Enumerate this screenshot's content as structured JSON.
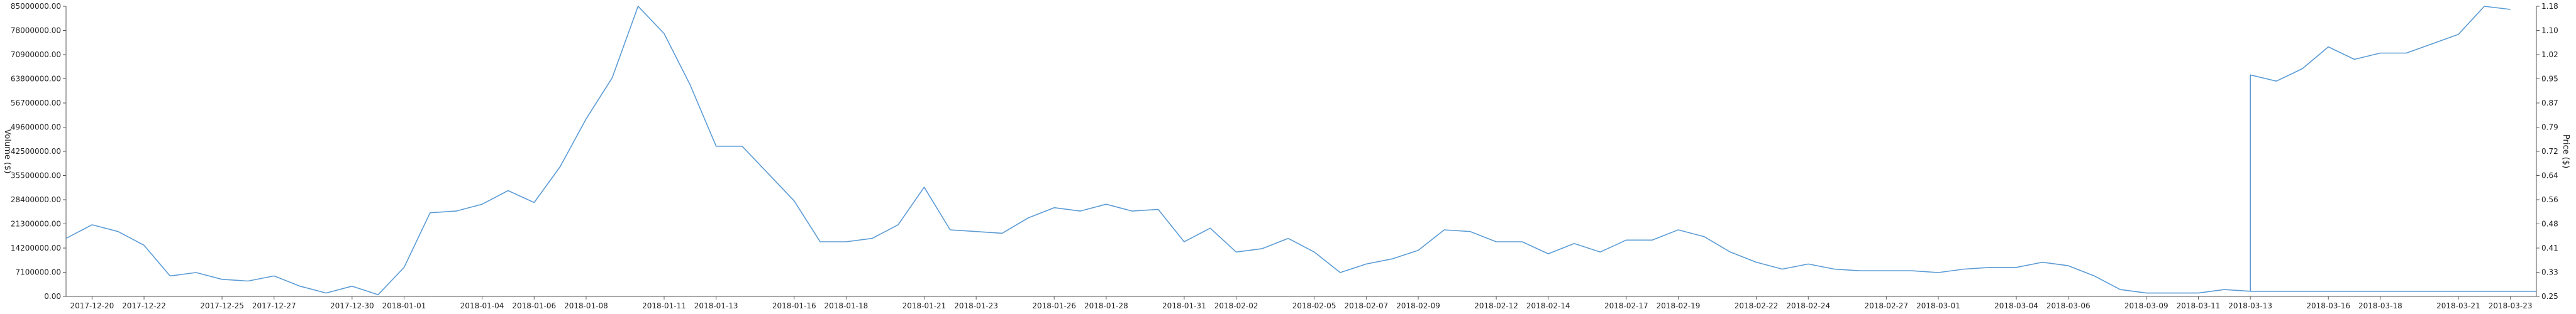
{
  "chart_data": {
    "type": "line",
    "title": "",
    "ylabel_left": "Volume ($)",
    "ylabel_right": "Price ($)",
    "ylim_left": [
      0,
      85000000
    ],
    "ylim_right": [
      0.25,
      1.18
    ],
    "grid": false,
    "colors": {
      "volume": "#5b9bd5",
      "price": "#5b9bd5"
    },
    "yticks_left": [
      "0.00",
      "7100000.00",
      "14200000.00",
      "21300000.00",
      "28400000.00",
      "35500000.00",
      "42500000.00",
      "49600000.00",
      "56700000.00",
      "63800000.00",
      "70900000.00",
      "78000000.00",
      "85000000.00"
    ],
    "yticks_right": [
      "0.25",
      "0.33",
      "0.41",
      "0.48",
      "0.56",
      "0.64",
      "0.72",
      "0.79",
      "0.87",
      "0.95",
      "1.02",
      "1.10",
      "1.18"
    ],
    "start_date": "2017-12-19",
    "xticks": [
      {
        "label": "2017-12-20",
        "day": 1
      },
      {
        "label": "2017-12-22",
        "day": 3
      },
      {
        "label": "2017-12-25",
        "day": 6
      },
      {
        "label": "2017-12-27",
        "day": 8
      },
      {
        "label": "2017-12-30",
        "day": 11
      },
      {
        "label": "2018-01-01",
        "day": 13
      },
      {
        "label": "2018-01-04",
        "day": 16
      },
      {
        "label": "2018-01-06",
        "day": 18
      },
      {
        "label": "2018-01-08",
        "day": 20
      },
      {
        "label": "2018-01-11",
        "day": 23
      },
      {
        "label": "2018-01-13",
        "day": 25
      },
      {
        "label": "2018-01-16",
        "day": 28
      },
      {
        "label": "2018-01-18",
        "day": 30
      },
      {
        "label": "2018-01-21",
        "day": 33
      },
      {
        "label": "2018-01-23",
        "day": 35
      },
      {
        "label": "2018-01-26",
        "day": 38
      },
      {
        "label": "2018-01-28",
        "day": 40
      },
      {
        "label": "2018-01-31",
        "day": 43
      },
      {
        "label": "2018-02-02",
        "day": 45
      },
      {
        "label": "2018-02-05",
        "day": 48
      },
      {
        "label": "2018-02-07",
        "day": 50
      },
      {
        "label": "2018-02-09",
        "day": 52
      },
      {
        "label": "2018-02-12",
        "day": 55
      },
      {
        "label": "2018-02-14",
        "day": 57
      },
      {
        "label": "2018-02-17",
        "day": 60
      },
      {
        "label": "2018-02-19",
        "day": 62
      },
      {
        "label": "2018-02-22",
        "day": 65
      },
      {
        "label": "2018-02-24",
        "day": 67
      },
      {
        "label": "2018-02-27",
        "day": 70
      },
      {
        "label": "2018-03-01",
        "day": 72
      },
      {
        "label": "2018-03-04",
        "day": 75
      },
      {
        "label": "2018-03-06",
        "day": 77
      },
      {
        "label": "2018-03-09",
        "day": 80
      },
      {
        "label": "2018-03-11",
        "day": 82
      },
      {
        "label": "2018-03-13",
        "day": 84
      },
      {
        "label": "2018-03-16",
        "day": 87
      },
      {
        "label": "2018-03-18",
        "day": 89
      },
      {
        "label": "2018-03-21",
        "day": 92
      },
      {
        "label": "2018-03-23",
        "day": 94
      }
    ],
    "series": [
      {
        "name": "Volume",
        "axis": "left",
        "values": [
          17000000,
          21000000,
          19000000,
          15000000,
          6000000,
          7000000,
          5000000,
          4500000,
          6000000,
          3000000,
          1000000,
          3000000,
          500000,
          8500000,
          24500000,
          25000000,
          27000000,
          31000000,
          27500000,
          38000000,
          52000000,
          64000000,
          85000000,
          77000000,
          62000000,
          44000000,
          44000000,
          36000000,
          28000000,
          16000000,
          16000000,
          17000000,
          21000000,
          32000000,
          19500000,
          19000000,
          18500000,
          23000000,
          26000000,
          25000000,
          27000000,
          25000000,
          25500000,
          16000000,
          20000000,
          13000000,
          14000000,
          17000000,
          13000000,
          7000000,
          9500000,
          11000000,
          13500000,
          19500000,
          19000000,
          16000000,
          16000000,
          12500000,
          15500000,
          13000000,
          16500000,
          16500000,
          19500000,
          17500000,
          13000000,
          10000000,
          8000000,
          9500000,
          8000000,
          7500000,
          7500000,
          7500000,
          7000000,
          8000000,
          8500000,
          8500000,
          10000000,
          9000000,
          6000000,
          2000000,
          1000000,
          1000000,
          1000000,
          2000000,
          1500000,
          1500000,
          1500000,
          1500000,
          1500000,
          1500000,
          1500000,
          1500000,
          1500000,
          1500000,
          1500000,
          1500000
        ]
      },
      {
        "name": "Price",
        "axis": "right",
        "start_day": 84,
        "values": [
          0.96,
          0.94,
          0.98,
          1.05,
          1.01,
          1.03,
          1.03,
          1.06,
          1.09,
          1.18,
          1.17
        ]
      }
    ]
  }
}
